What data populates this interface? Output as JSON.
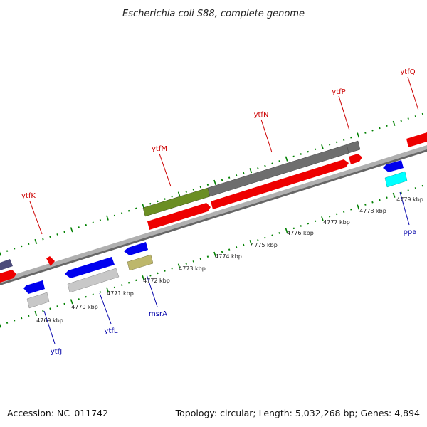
{
  "title": "Escherichia coli S88, complete genome",
  "footer": {
    "accession": "Accession: NC_011742",
    "summary": "Topology: circular; Length: 5,032,268 bp; Genes: 4,894"
  },
  "colors": {
    "top_label": "#cc0000",
    "bottom_label": "#0000aa",
    "tick": "#008000",
    "backbone": "#777777",
    "gene_red": "#ff0000",
    "gene_blue": "#0000ee",
    "gene_gray": "#6e6e6e",
    "gene_olive": "#6b8e23",
    "gene_khaki": "#bdb76b",
    "gene_lightgray": "#c8c8c8",
    "gene_cyan": "#00ffff",
    "gene_slate": "#4b4b7a"
  },
  "scale_labels": [
    "4769 kbp",
    "4770 kbp",
    "4771 kbp",
    "4772 kbp",
    "4773 kbp",
    "4774 kbp",
    "4775 kbp",
    "4776 kbp",
    "4777 kbp",
    "4778 kbp",
    "4779 kbp"
  ],
  "gene_labels": [
    {
      "name": "ytfK",
      "strand": "top"
    },
    {
      "name": "ytfM",
      "strand": "top"
    },
    {
      "name": "ytfN",
      "strand": "top"
    },
    {
      "name": "ytfP",
      "strand": "top"
    },
    {
      "name": "ytfQ",
      "strand": "top"
    },
    {
      "name": "ytfJ",
      "strand": "bottom"
    },
    {
      "name": "ytfL",
      "strand": "bottom"
    },
    {
      "name": "msrA",
      "strand": "bottom"
    },
    {
      "name": "ppa",
      "strand": "bottom"
    }
  ]
}
